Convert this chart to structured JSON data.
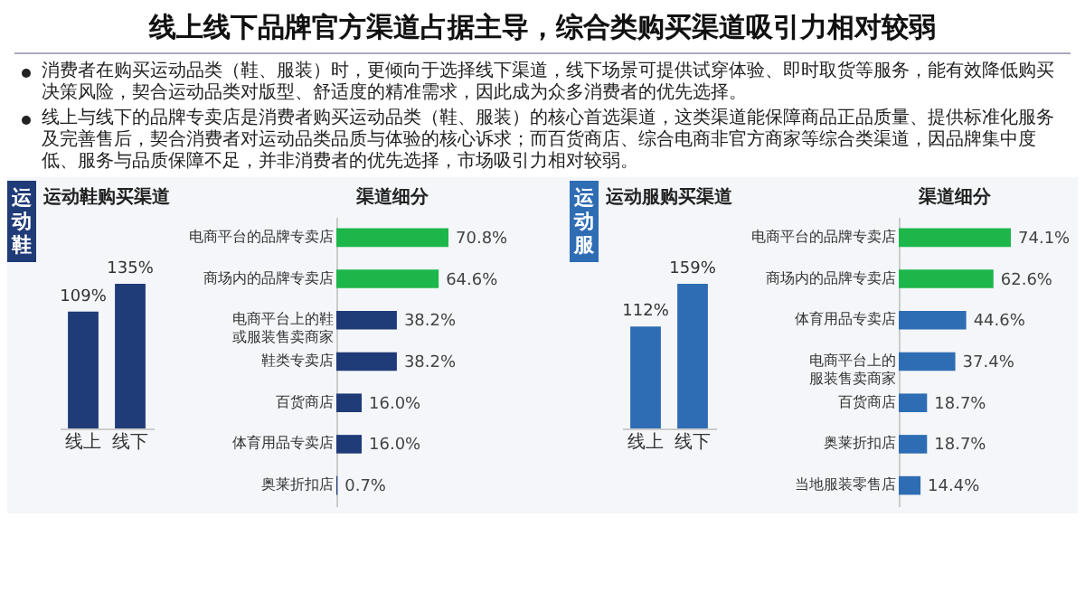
{
  "chart_data": [
    {
      "type": "other",
      "title": "线上线下品牌官方渠道占据主导，综合类购买渠道吸引力相对较弱",
      "annotations": [
        "消费者在购买运动品类（鞋、服装）时，更倾向于选择线下渠道，线下场景可提供试穿体验、即时取货等服务，能有效降低购买决策风险，契合运动品类对版型、舒适度的精准需求，因此成为众多消费者的优先选择。",
        "线上与线下的品牌专卖店是消费者购买运动品类（鞋、服装）的核心首选渠道，这类渠道能保障商品正品质量、提供标准化服务及完善售后，契合消费者对运动品类品质与体验的核心诉求；而百货商店、综合电商非官方商家等综合类渠道，因品牌集中度低、服务与品质保障不足，并非消费者的优先选择，市场吸引力相对较弱。"
      ]
    },
    {
      "type": "bar",
      "title": "运动鞋购买渠道",
      "annotations": [
        "运动鞋"
      ],
      "categories": [
        "线上",
        "线下"
      ],
      "values": [
        109,
        135
      ],
      "value_labels": [
        "109%",
        "135%"
      ],
      "color": "#1f3b78"
    },
    {
      "type": "bar",
      "orientation": "horizontal",
      "title": "渠道细分",
      "categories": [
        "电商平台的品牌专卖店",
        "商场内的品牌专卖店",
        "电商平台上的鞋或服装售卖商家",
        "鞋类专卖店",
        "百货商店",
        "体育用品专卖店",
        "奥莱折扣店"
      ],
      "values": [
        70.8,
        64.6,
        38.2,
        38.2,
        16.0,
        16.0,
        0.7
      ],
      "value_labels": [
        "70.8%",
        "64.6%",
        "38.2%",
        "38.2%",
        "16.0%",
        "16.0%",
        "0.7%"
      ],
      "colors": [
        "#1db64b",
        "#1db64b",
        "#1f3b78",
        "#1f3b78",
        "#1f3b78",
        "#1f3b78",
        "#1f3b78"
      ]
    },
    {
      "type": "bar",
      "title": "运动服购买渠道",
      "annotations": [
        "运动服"
      ],
      "categories": [
        "线上",
        "线下"
      ],
      "values": [
        112,
        159
      ],
      "value_labels": [
        "112%",
        "159%"
      ],
      "color": "#2e6db4"
    },
    {
      "type": "bar",
      "orientation": "horizontal",
      "title": "渠道细分",
      "categories": [
        "电商平台的品牌专卖店",
        "商场内的品牌专卖店",
        "体育用品专卖店",
        "电商平台上的服装售卖商家",
        "百货商店",
        "奥莱折扣店",
        "当地服装零售店"
      ],
      "values": [
        74.1,
        62.6,
        44.6,
        37.4,
        18.7,
        18.7,
        14.4
      ],
      "value_labels": [
        "74.1%",
        "62.6%",
        "44.6%",
        "37.4%",
        "18.7%",
        "18.7%",
        "14.4%"
      ],
      "colors": [
        "#1db64b",
        "#1db64b",
        "#2e6db4",
        "#2e6db4",
        "#2e6db4",
        "#2e6db4",
        "#2e6db4"
      ]
    }
  ]
}
